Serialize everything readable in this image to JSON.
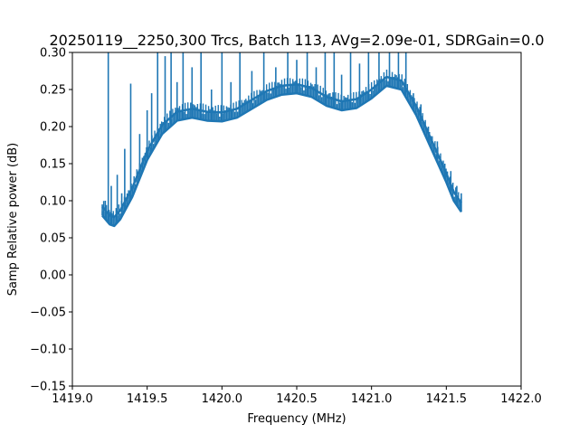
{
  "chart_data": {
    "type": "line",
    "title": "20250119__2250,300 Trcs, Batch 113, AVg=2.09e-01, SDRGain=0.0",
    "xlabel": "Frequency (MHz)",
    "ylabel": "Samp Relative power (dB)",
    "xlim": [
      1419.0,
      1422.0
    ],
    "ylim": [
      -0.15,
      0.3
    ],
    "xticks": [
      "1419.0",
      "1419.5",
      "1420.0",
      "1420.5",
      "1421.0",
      "1421.5",
      "1422.0"
    ],
    "yticks": [
      "−0.15",
      "−0.10",
      "−0.05",
      "0.00",
      "0.05",
      "0.10",
      "0.15",
      "0.20",
      "0.25",
      "0.30"
    ],
    "grid": false,
    "series_color": "#1f77b4",
    "baseline": {
      "x": [
        1419.2,
        1419.25,
        1419.28,
        1419.32,
        1419.4,
        1419.5,
        1419.6,
        1419.7,
        1419.8,
        1419.9,
        1420.0,
        1420.1,
        1420.2,
        1420.3,
        1420.4,
        1420.5,
        1420.6,
        1420.7,
        1420.8,
        1420.9,
        1421.0,
        1421.1,
        1421.2,
        1421.3,
        1421.4,
        1421.5,
        1421.55,
        1421.6
      ],
      "y": [
        0.08,
        0.068,
        0.066,
        0.075,
        0.105,
        0.155,
        0.19,
        0.208,
        0.212,
        0.208,
        0.207,
        0.212,
        0.224,
        0.236,
        0.243,
        0.245,
        0.24,
        0.228,
        0.222,
        0.225,
        0.238,
        0.255,
        0.25,
        0.215,
        0.17,
        0.125,
        0.1,
        0.085
      ]
    },
    "spikes": [
      {
        "x": 1419.2,
        "y": 0.095
      },
      {
        "x": 1419.22,
        "y": 0.1
      },
      {
        "x": 1419.24,
        "y": 0.3
      },
      {
        "x": 1419.26,
        "y": 0.12
      },
      {
        "x": 1419.3,
        "y": 0.135
      },
      {
        "x": 1419.33,
        "y": 0.11
      },
      {
        "x": 1419.35,
        "y": 0.17
      },
      {
        "x": 1419.39,
        "y": 0.258
      },
      {
        "x": 1419.45,
        "y": 0.19
      },
      {
        "x": 1419.5,
        "y": 0.222
      },
      {
        "x": 1419.53,
        "y": 0.245
      },
      {
        "x": 1419.57,
        "y": 0.3
      },
      {
        "x": 1419.62,
        "y": 0.295
      },
      {
        "x": 1419.66,
        "y": 0.3
      },
      {
        "x": 1419.7,
        "y": 0.26
      },
      {
        "x": 1419.74,
        "y": 0.3
      },
      {
        "x": 1419.8,
        "y": 0.28
      },
      {
        "x": 1419.86,
        "y": 0.3
      },
      {
        "x": 1419.93,
        "y": 0.25
      },
      {
        "x": 1420.0,
        "y": 0.3
      },
      {
        "x": 1420.06,
        "y": 0.26
      },
      {
        "x": 1420.12,
        "y": 0.3
      },
      {
        "x": 1420.2,
        "y": 0.275
      },
      {
        "x": 1420.28,
        "y": 0.3
      },
      {
        "x": 1420.36,
        "y": 0.28
      },
      {
        "x": 1420.44,
        "y": 0.3
      },
      {
        "x": 1420.5,
        "y": 0.29
      },
      {
        "x": 1420.57,
        "y": 0.3
      },
      {
        "x": 1420.63,
        "y": 0.28
      },
      {
        "x": 1420.69,
        "y": 0.3
      },
      {
        "x": 1420.75,
        "y": 0.3
      },
      {
        "x": 1420.8,
        "y": 0.27
      },
      {
        "x": 1420.86,
        "y": 0.3
      },
      {
        "x": 1420.92,
        "y": 0.285
      },
      {
        "x": 1420.98,
        "y": 0.3
      },
      {
        "x": 1421.05,
        "y": 0.3
      },
      {
        "x": 1421.12,
        "y": 0.3
      },
      {
        "x": 1421.18,
        "y": 0.3
      },
      {
        "x": 1421.23,
        "y": 0.3
      },
      {
        "x": 1421.28,
        "y": 0.245
      },
      {
        "x": 1421.33,
        "y": 0.23
      },
      {
        "x": 1421.38,
        "y": 0.2
      },
      {
        "x": 1421.44,
        "y": 0.18
      },
      {
        "x": 1421.49,
        "y": 0.15
      },
      {
        "x": 1421.53,
        "y": 0.14
      },
      {
        "x": 1421.57,
        "y": 0.12
      },
      {
        "x": 1421.6,
        "y": 0.11
      }
    ]
  }
}
